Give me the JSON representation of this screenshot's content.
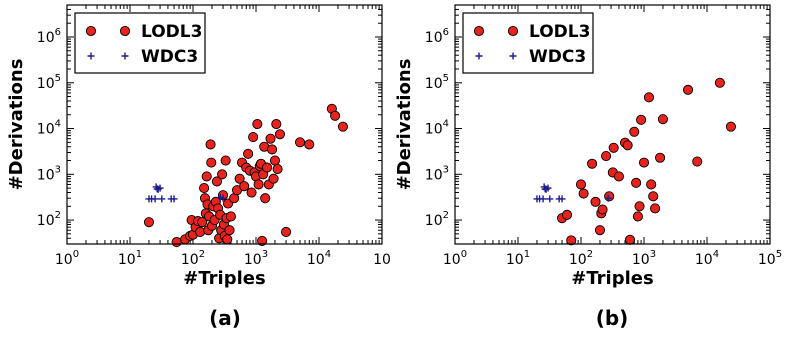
{
  "chart_data": [
    {
      "type": "scatter",
      "panel_label": "(a)",
      "xlabel": "#Triples",
      "ylabel": "#Derivations",
      "xscale": "log",
      "yscale": "log",
      "xlim": [
        1,
        100000
      ],
      "ylim": [
        30,
        5000000
      ],
      "x_tick_labels": [
        {
          "base": "10",
          "exp": "0"
        },
        {
          "base": "10",
          "exp": "1"
        },
        {
          "base": "10",
          "exp": "2"
        },
        {
          "base": "10",
          "exp": "3"
        },
        {
          "base": "10",
          "exp": "4"
        },
        {
          "base": "10",
          "exp": ""
        }
      ],
      "y_tick_labels": [
        {
          "base": "10",
          "exp": "2"
        },
        {
          "base": "10",
          "exp": "3"
        },
        {
          "base": "10",
          "exp": "4"
        },
        {
          "base": "10",
          "exp": "5"
        },
        {
          "base": "10",
          "exp": "6"
        }
      ],
      "legend_position": "top-left",
      "series": [
        {
          "name": "LODL3",
          "marker": "circle",
          "color": "#e8231e",
          "points": [
            [
              20,
              90
            ],
            [
              55,
              33
            ],
            [
              75,
              38
            ],
            [
              90,
              45
            ],
            [
              95,
              100
            ],
            [
              100,
              48
            ],
            [
              110,
              70
            ],
            [
              120,
              95
            ],
            [
              130,
              55
            ],
            [
              140,
              90
            ],
            [
              150,
              500
            ],
            [
              155,
              300
            ],
            [
              160,
              140
            ],
            [
              165,
              900
            ],
            [
              170,
              220
            ],
            [
              175,
              60
            ],
            [
              180,
              120
            ],
            [
              190,
              4500
            ],
            [
              195,
              1800
            ],
            [
              200,
              75
            ],
            [
              210,
              200
            ],
            [
              220,
              100
            ],
            [
              230,
              250
            ],
            [
              240,
              700
            ],
            [
              250,
              180
            ],
            [
              260,
              40
            ],
            [
              270,
              130
            ],
            [
              280,
              60
            ],
            [
              290,
              1000
            ],
            [
              300,
              350
            ],
            [
              310,
              80
            ],
            [
              320,
              45
            ],
            [
              330,
              2000
            ],
            [
              340,
              110
            ],
            [
              350,
              38
            ],
            [
              360,
              230
            ],
            [
              380,
              60
            ],
            [
              400,
              120
            ],
            [
              450,
              300
            ],
            [
              500,
              450
            ],
            [
              550,
              800
            ],
            [
              600,
              1800
            ],
            [
              650,
              550
            ],
            [
              700,
              1400
            ],
            [
              750,
              2800
            ],
            [
              800,
              1200
            ],
            [
              850,
              400
            ],
            [
              900,
              6500
            ],
            [
              950,
              1100
            ],
            [
              1000,
              900
            ],
            [
              1050,
              12500
            ],
            [
              1100,
              600
            ],
            [
              1150,
              1500
            ],
            [
              1200,
              1700
            ],
            [
              1250,
              35
            ],
            [
              1300,
              1000
            ],
            [
              1350,
              4000
            ],
            [
              1400,
              300
            ],
            [
              1500,
              1400
            ],
            [
              1600,
              600
            ],
            [
              1700,
              6000
            ],
            [
              1800,
              3500
            ],
            [
              1900,
              800
            ],
            [
              2000,
              2000
            ],
            [
              2100,
              12500
            ],
            [
              2200,
              1300
            ],
            [
              2400,
              7500
            ],
            [
              3000,
              55
            ],
            [
              5000,
              5000
            ],
            [
              7000,
              4500
            ],
            [
              16000,
              27000
            ],
            [
              18000,
              19000
            ],
            [
              24000,
              11000
            ]
          ]
        },
        {
          "name": "WDC3",
          "marker": "plus",
          "color": "#1c1c8c",
          "points": [
            [
              20,
              290
            ],
            [
              22,
              290
            ],
            [
              25,
              290
            ],
            [
              26,
              530
            ],
            [
              27,
              480
            ],
            [
              28,
              470
            ],
            [
              30,
              500
            ],
            [
              32,
              290
            ],
            [
              45,
              290
            ],
            [
              50,
              290
            ],
            [
              270,
              310
            ],
            [
              300,
              300
            ]
          ]
        }
      ]
    },
    {
      "type": "scatter",
      "panel_label": "(b)",
      "xlabel": "#Triples",
      "ylabel": "#Derivations",
      "xscale": "log",
      "yscale": "log",
      "xlim": [
        1,
        100000
      ],
      "ylim": [
        30,
        5000000
      ],
      "x_tick_labels": [
        {
          "base": "10",
          "exp": "0"
        },
        {
          "base": "10",
          "exp": "1"
        },
        {
          "base": "10",
          "exp": "2"
        },
        {
          "base": "10",
          "exp": "3"
        },
        {
          "base": "10",
          "exp": "4"
        },
        {
          "base": "10",
          "exp": "5"
        }
      ],
      "y_tick_labels": [
        {
          "base": "10",
          "exp": "2"
        },
        {
          "base": "10",
          "exp": "3"
        },
        {
          "base": "10",
          "exp": "4"
        },
        {
          "base": "10",
          "exp": "5"
        },
        {
          "base": "10",
          "exp": "6"
        }
      ],
      "legend_position": "top-left",
      "series": [
        {
          "name": "LODL3",
          "marker": "circle",
          "color": "#e8231e",
          "points": [
            [
              50,
              110
            ],
            [
              60,
              130
            ],
            [
              70,
              36
            ],
            [
              100,
              600
            ],
            [
              110,
              380
            ],
            [
              150,
              1700
            ],
            [
              170,
              250
            ],
            [
              200,
              60
            ],
            [
              210,
              140
            ],
            [
              220,
              170
            ],
            [
              250,
              2500
            ],
            [
              280,
              330
            ],
            [
              320,
              1100
            ],
            [
              330,
              3800
            ],
            [
              400,
              900
            ],
            [
              500,
              4900
            ],
            [
              550,
              4300
            ],
            [
              600,
              37
            ],
            [
              700,
              8500
            ],
            [
              750,
              650
            ],
            [
              800,
              120
            ],
            [
              850,
              200
            ],
            [
              900,
              15500
            ],
            [
              1000,
              1800
            ],
            [
              1200,
              48000
            ],
            [
              1300,
              600
            ],
            [
              1400,
              330
            ],
            [
              1500,
              180
            ],
            [
              1800,
              2300
            ],
            [
              2000,
              16000
            ],
            [
              5000,
              70000
            ],
            [
              7000,
              1900
            ],
            [
              16000,
              100000
            ],
            [
              24000,
              11000
            ]
          ]
        },
        {
          "name": "WDC3",
          "marker": "plus",
          "color": "#1c1c8c",
          "points": [
            [
              20,
              290
            ],
            [
              22,
              290
            ],
            [
              25,
              290
            ],
            [
              26,
              530
            ],
            [
              27,
              480
            ],
            [
              28,
              470
            ],
            [
              30,
              500
            ],
            [
              32,
              290
            ],
            [
              45,
              290
            ],
            [
              50,
              290
            ],
            [
              270,
              300
            ]
          ]
        }
      ]
    }
  ]
}
